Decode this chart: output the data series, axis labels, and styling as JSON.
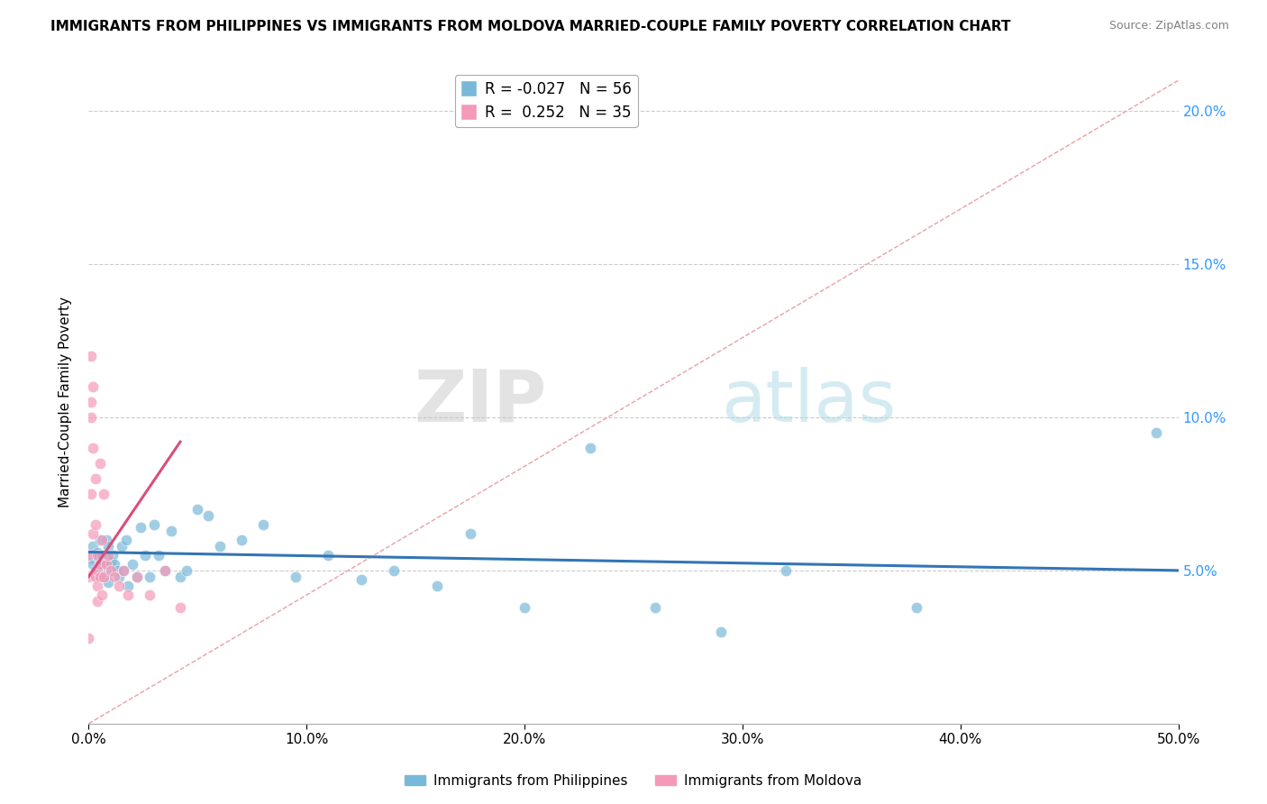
{
  "title": "IMMIGRANTS FROM PHILIPPINES VS IMMIGRANTS FROM MOLDOVA MARRIED-COUPLE FAMILY POVERTY CORRELATION CHART",
  "source": "Source: ZipAtlas.com",
  "ylabel": "Married-Couple Family Poverty",
  "legend_blue_label": "Immigrants from Philippines",
  "legend_pink_label": "Immigrants from Moldova",
  "blue_R": -0.027,
  "blue_N": 56,
  "pink_R": 0.252,
  "pink_N": 35,
  "xlim": [
    0.0,
    0.5
  ],
  "ylim": [
    0.0,
    0.21
  ],
  "xticks": [
    0.0,
    0.1,
    0.2,
    0.3,
    0.4,
    0.5
  ],
  "yticks": [
    0.05,
    0.1,
    0.15,
    0.2
  ],
  "blue_color": "#7ab8d9",
  "pink_color": "#f599b8",
  "blue_line_color": "#3375b5",
  "pink_line_color": "#d94f7a",
  "diagonal_color": "#e8a0a8",
  "watermark_zip": "ZIP",
  "watermark_atlas": "atlas",
  "blue_x": [
    0.001,
    0.002,
    0.002,
    0.003,
    0.003,
    0.004,
    0.004,
    0.005,
    0.005,
    0.006,
    0.006,
    0.007,
    0.007,
    0.008,
    0.008,
    0.009,
    0.009,
    0.01,
    0.01,
    0.011,
    0.012,
    0.013,
    0.014,
    0.015,
    0.016,
    0.017,
    0.018,
    0.02,
    0.022,
    0.024,
    0.026,
    0.028,
    0.03,
    0.032,
    0.035,
    0.038,
    0.042,
    0.045,
    0.05,
    0.055,
    0.06,
    0.07,
    0.08,
    0.095,
    0.11,
    0.125,
    0.14,
    0.16,
    0.175,
    0.2,
    0.23,
    0.26,
    0.29,
    0.32,
    0.38,
    0.49
  ],
  "blue_y": [
    0.054,
    0.052,
    0.058,
    0.055,
    0.05,
    0.056,
    0.048,
    0.053,
    0.06,
    0.055,
    0.05,
    0.052,
    0.048,
    0.06,
    0.054,
    0.058,
    0.046,
    0.05,
    0.053,
    0.055,
    0.052,
    0.05,
    0.048,
    0.058,
    0.05,
    0.06,
    0.045,
    0.052,
    0.048,
    0.064,
    0.055,
    0.048,
    0.065,
    0.055,
    0.05,
    0.063,
    0.048,
    0.05,
    0.07,
    0.068,
    0.058,
    0.06,
    0.065,
    0.048,
    0.055,
    0.047,
    0.05,
    0.045,
    0.062,
    0.038,
    0.09,
    0.038,
    0.03,
    0.05,
    0.038,
    0.095
  ],
  "pink_x": [
    0.0,
    0.0,
    0.0,
    0.001,
    0.001,
    0.001,
    0.001,
    0.002,
    0.002,
    0.002,
    0.003,
    0.003,
    0.003,
    0.004,
    0.004,
    0.004,
    0.004,
    0.005,
    0.005,
    0.005,
    0.006,
    0.006,
    0.007,
    0.007,
    0.008,
    0.009,
    0.01,
    0.012,
    0.014,
    0.016,
    0.018,
    0.022,
    0.028,
    0.035,
    0.042
  ],
  "pink_y": [
    0.055,
    0.048,
    0.028,
    0.12,
    0.1,
    0.105,
    0.075,
    0.11,
    0.09,
    0.062,
    0.08,
    0.065,
    0.048,
    0.055,
    0.05,
    0.045,
    0.04,
    0.085,
    0.052,
    0.048,
    0.06,
    0.042,
    0.075,
    0.048,
    0.052,
    0.055,
    0.05,
    0.048,
    0.045,
    0.05,
    0.042,
    0.048,
    0.042,
    0.05,
    0.038
  ],
  "blue_trend_x0": 0.0,
  "blue_trend_x1": 0.5,
  "blue_trend_y0": 0.056,
  "blue_trend_y1": 0.05,
  "pink_trend_x0": 0.0,
  "pink_trend_x1": 0.042,
  "pink_trend_y0": 0.048,
  "pink_trend_y1": 0.092
}
